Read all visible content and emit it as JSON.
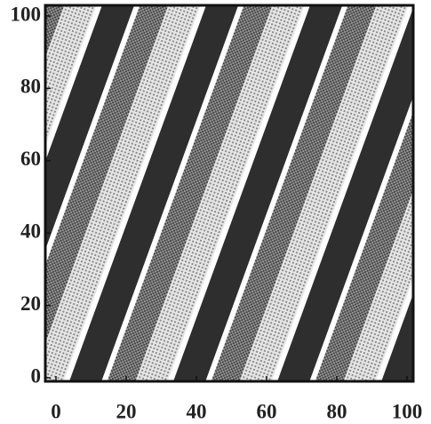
{
  "chart_data": {
    "type": "heatmap",
    "xlim": [
      0,
      100
    ],
    "ylim": [
      0,
      100
    ],
    "xticks": [
      0,
      20,
      40,
      60,
      80,
      100
    ],
    "yticks": [
      0,
      20,
      40,
      60,
      80,
      100
    ]
  }
}
